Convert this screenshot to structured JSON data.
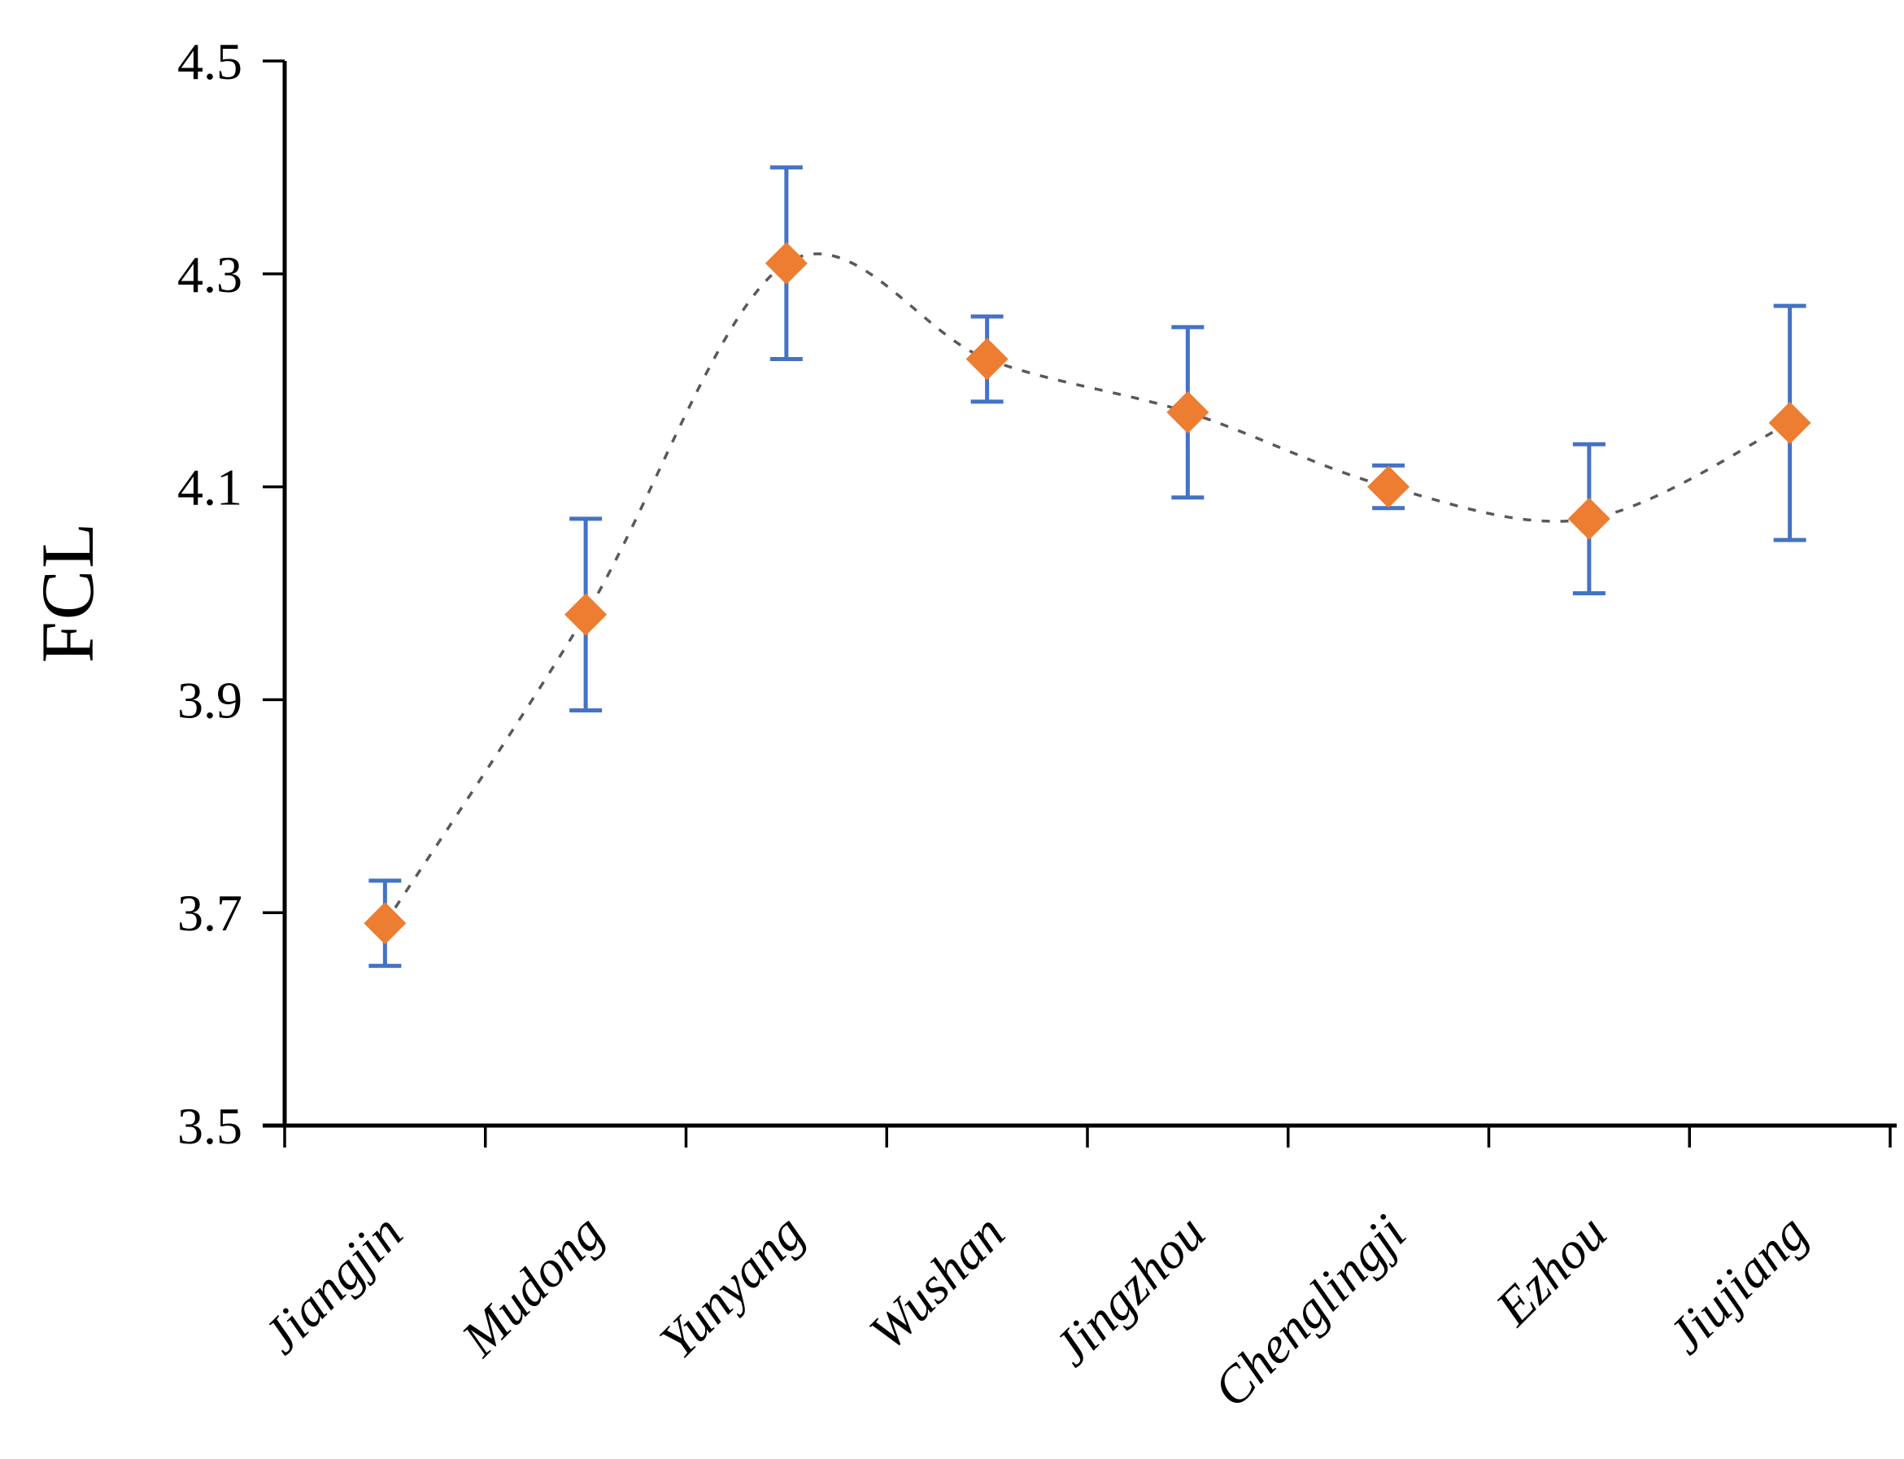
{
  "chart_data": {
    "type": "scatter",
    "title": "",
    "ylabel": "FCL",
    "xlabel": "",
    "categories": [
      "Jiangjin",
      "Mudong",
      "Yunyang",
      "Wushan",
      "Jingzhou",
      "Chenglingji",
      "Ezhou",
      "Jiujiang"
    ],
    "series": [
      {
        "name": "FCL",
        "values": [
          3.69,
          3.98,
          4.31,
          4.22,
          4.17,
          4.1,
          4.07,
          4.16
        ],
        "error_plus": [
          0.04,
          0.09,
          0.09,
          0.04,
          0.08,
          0.02,
          0.07,
          0.11
        ],
        "error_minus": [
          0.04,
          0.09,
          0.09,
          0.04,
          0.08,
          0.02,
          0.07,
          0.11
        ]
      }
    ],
    "ylim": [
      3.5,
      4.5
    ],
    "ytick_values": [
      4.5,
      4.3,
      4.1,
      3.9,
      3.7,
      3.5
    ],
    "ytick_labels": [
      "4.5",
      "4.3",
      "4.1",
      "3.9",
      "3.7",
      "3.5"
    ],
    "grid": false,
    "legend": "none",
    "line_style": "dashed-smooth",
    "marker": "diamond",
    "colors": {
      "marker": "#ED7D31",
      "error_bar": "#4472C4",
      "line": "#595959",
      "axis": "#000000",
      "text": "#000000",
      "background": "#FFFFFF"
    }
  }
}
